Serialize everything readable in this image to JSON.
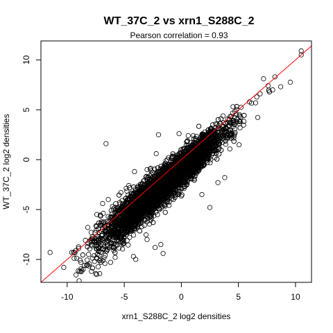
{
  "chart_data": {
    "type": "scatter",
    "title": "WT_37C_2 vs xrn1_S288C_2",
    "subtitle": "Pearson correlation =  0.93",
    "xlabel": "xrn1_S288C_2 log2 densities",
    "ylabel": "WT_37C_2 log2 densities",
    "xlim": [
      -12.3,
      11.4
    ],
    "ylim": [
      -12.3,
      11.9
    ],
    "xticks": [
      -10,
      -5,
      0,
      5,
      10
    ],
    "yticks": [
      -10,
      -5,
      0,
      5,
      10
    ],
    "reference_line": {
      "label": "y = x",
      "color": "#ff0000"
    },
    "point_style": {
      "shape": "open-circle",
      "color": "#000000"
    },
    "bulk_trend": {
      "slope": 1.0,
      "intercept": -1.0,
      "spread_sd": 0.85,
      "x_range": [
        -9.5,
        10.5
      ],
      "n_points_approx": 5000
    },
    "points": [
      {
        "x": 10.5,
        "y": 10.9
      },
      {
        "x": 10.5,
        "y": 10.5
      },
      {
        "x": 8.2,
        "y": 8.3
      },
      {
        "x": 7.6,
        "y": 7.4
      },
      {
        "x": 8.0,
        "y": 7.0
      },
      {
        "x": 8.7,
        "y": 7.3
      },
      {
        "x": 7.2,
        "y": 8.1
      },
      {
        "x": 6.9,
        "y": 6.6
      },
      {
        "x": 6.5,
        "y": 5.7
      },
      {
        "x": -6.6,
        "y": 1.6
      },
      {
        "x": -2.0,
        "y": 2.5
      },
      {
        "x": -0.2,
        "y": 2.6
      },
      {
        "x": 0.6,
        "y": 2.4
      },
      {
        "x": 1.8,
        "y": 2.5
      },
      {
        "x": -2.2,
        "y": 0.6
      },
      {
        "x": -1.5,
        "y": -0.5
      },
      {
        "x": -3.0,
        "y": -1.0
      },
      {
        "x": 1.8,
        "y": -3.5
      },
      {
        "x": 3.2,
        "y": -2.3
      },
      {
        "x": 2.5,
        "y": -4.8
      },
      {
        "x": 3.8,
        "y": -1.8
      },
      {
        "x": -1.6,
        "y": -9.4
      },
      {
        "x": -1.8,
        "y": -8.5
      },
      {
        "x": -2.3,
        "y": -8.8
      },
      {
        "x": -3.0,
        "y": -8.0
      },
      {
        "x": -11.5,
        "y": -9.3
      },
      {
        "x": -10.3,
        "y": -10.8
      },
      {
        "x": -9.6,
        "y": -9.3
      },
      {
        "x": -9.0,
        "y": -8.9
      },
      {
        "x": -8.8,
        "y": -10.3
      },
      {
        "x": -8.6,
        "y": -11.0
      },
      {
        "x": -8.3,
        "y": -10.6
      },
      {
        "x": -8.9,
        "y": -11.2
      },
      {
        "x": -7.6,
        "y": -10.2
      },
      {
        "x": -7.2,
        "y": -9.6
      },
      {
        "x": -6.7,
        "y": -10.4
      },
      {
        "x": -7.9,
        "y": -7.3
      },
      {
        "x": -8.2,
        "y": -6.8
      },
      {
        "x": -6.9,
        "y": -4.4
      },
      {
        "x": -7.4,
        "y": -5.5
      },
      {
        "x": -6.4,
        "y": -4.0
      },
      {
        "x": -5.3,
        "y": -3.3
      },
      {
        "x": -4.6,
        "y": -2.6
      },
      {
        "x": -4.1,
        "y": -1.2
      },
      {
        "x": -5.8,
        "y": -9.8
      },
      {
        "x": -6.1,
        "y": -8.7
      },
      {
        "x": -5.5,
        "y": -7.6
      },
      {
        "x": -4.2,
        "y": -9.7
      },
      {
        "x": -4.0,
        "y": -10.0
      },
      {
        "x": -6.2,
        "y": -10.3
      }
    ]
  }
}
